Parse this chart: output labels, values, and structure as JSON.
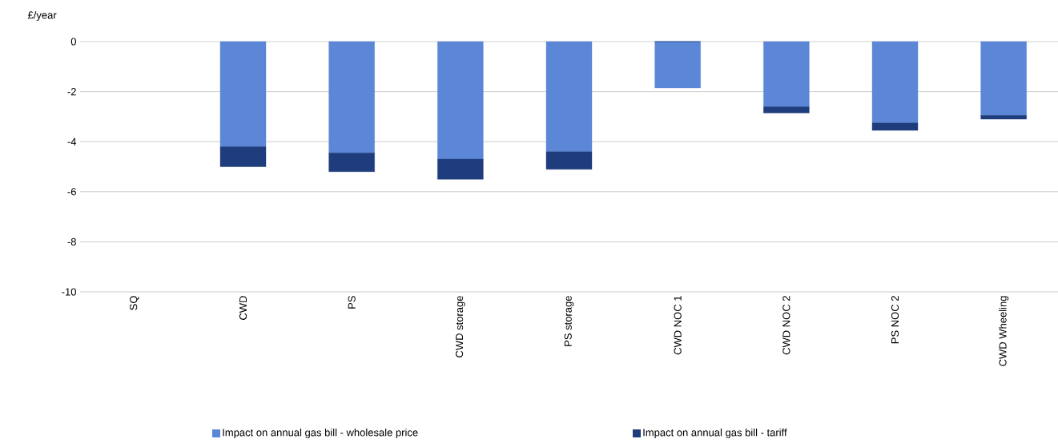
{
  "chart_data": {
    "type": "bar",
    "ylabel": "£/year",
    "categories": [
      "SQ",
      "CWD",
      "PS",
      "CWD storage",
      "PS storage",
      "CWD NOC 1",
      "CWD NOC 2",
      "PS NOC 2",
      "CWD Wheeling"
    ],
    "stacked": true,
    "series": [
      {
        "name": "Impact on annual gas bill - wholesale price",
        "color": "#5b87d6",
        "values": [
          0,
          -4.2,
          -4.45,
          -4.7,
          -4.4,
          -1.85,
          -2.6,
          -3.25,
          -2.95
        ]
      },
      {
        "name": "Impact on annual gas bill - tariff",
        "color": "#1f3c7c",
        "values": [
          0,
          -0.8,
          -0.75,
          -0.8,
          -0.7,
          0,
          -0.25,
          -0.3,
          -0.15
        ]
      }
    ],
    "ylim": [
      -10,
      0
    ],
    "yticks": [
      -10,
      -8,
      -6,
      -4,
      -2,
      0
    ],
    "grid": "y",
    "legend": "bottom"
  }
}
